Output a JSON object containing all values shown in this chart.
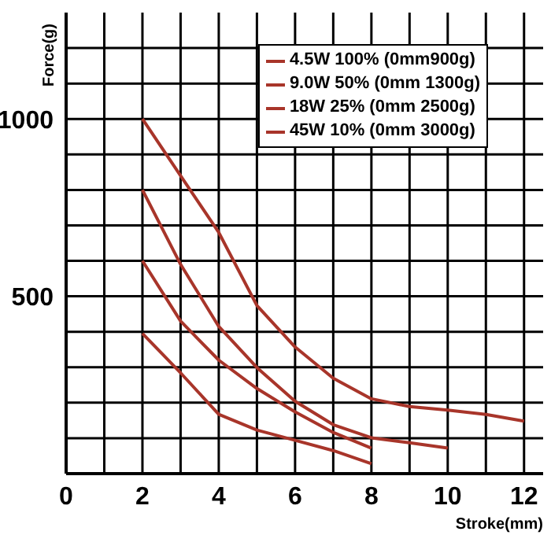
{
  "chart_data": {
    "type": "line",
    "xlabel": "Stroke(mm)",
    "ylabel": "Force(g)",
    "xlim": [
      0,
      12.5
    ],
    "ylim": [
      0,
      1300
    ],
    "xticks": [
      0,
      {
        "value": 1,
        "label": null
      },
      2,
      {
        "value": 3,
        "label": null
      },
      4,
      {
        "value": 5,
        "label": null
      },
      6,
      {
        "value": 7,
        "label": null
      },
      8,
      {
        "value": 9,
        "label": null
      },
      10,
      {
        "value": 11,
        "label": null
      },
      12
    ],
    "yticks": [
      {
        "value": 100,
        "label": null
      },
      {
        "value": 200,
        "label": null
      },
      {
        "value": 300,
        "label": null
      },
      {
        "value": 400,
        "label": null
      },
      500,
      {
        "value": 600,
        "label": null
      },
      {
        "value": 700,
        "label": null
      },
      {
        "value": 800,
        "label": null
      },
      {
        "value": 900,
        "label": null
      },
      1000,
      {
        "value": 1100,
        "label": null
      },
      {
        "value": 1200,
        "label": null
      }
    ],
    "grid": true,
    "legend": "top right",
    "marker": "none",
    "line_style": "solid",
    "series": [
      {
        "name": "4.5W 100% (0mm900g)",
        "color": "#a8352a",
        "x": [
          2,
          3,
          4,
          5,
          6,
          7,
          8
        ],
        "values": [
          395,
          284,
          167,
          123,
          94,
          65,
          28
        ]
      },
      {
        "name": "9.0W 50% (0mm 1300g)",
        "color": "#a8352a",
        "x": [
          2,
          3,
          4,
          5,
          6,
          7,
          8
        ],
        "values": [
          600,
          430,
          320,
          240,
          174,
          116,
          72
        ]
      },
      {
        "name": "18W 25% (0mm 2500g)",
        "color": "#a8352a",
        "x": [
          2,
          3,
          4,
          5,
          6,
          7,
          8,
          9,
          10
        ],
        "values": [
          800,
          590,
          415,
          299,
          204,
          138,
          101,
          87,
          72
        ]
      },
      {
        "name": "45W 10% (0mm 3000g)",
        "color": "#a8352a",
        "x": [
          2,
          3,
          4,
          5,
          6,
          7,
          8,
          9,
          10,
          11,
          12
        ],
        "values": [
          1000,
          840,
          680,
          474,
          357,
          269,
          211,
          189,
          179,
          167,
          148
        ]
      }
    ]
  }
}
